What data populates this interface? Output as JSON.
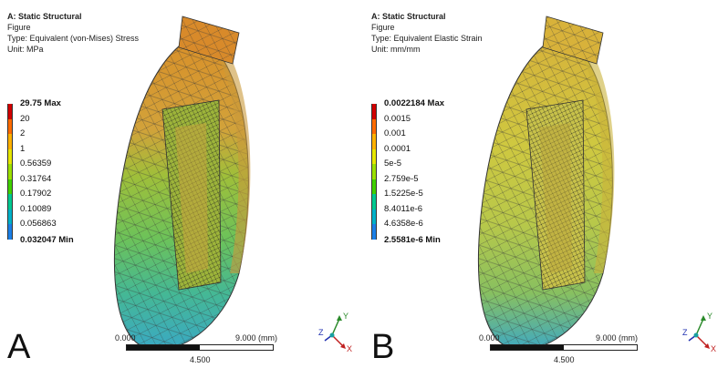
{
  "panels": [
    {
      "letter": "A",
      "header": {
        "title": "A: Static Structural",
        "line2": "Figure",
        "type": "Type: Equivalent (von-Mises) Stress",
        "unit": "Unit: MPa"
      },
      "legend": [
        "29.75 Max",
        "20",
        "2",
        "1",
        "0.56359",
        "0.31764",
        "0.17902",
        "0.10089",
        "0.056863",
        "0.032047 Min"
      ],
      "scale": {
        "left": "0.000",
        "middle": "4.500",
        "right": "9.000 (mm)"
      },
      "axes": {
        "y": "Y",
        "z": "Z",
        "x": "X"
      }
    },
    {
      "letter": "B",
      "header": {
        "title": "A: Static Structural",
        "line2": "Figure",
        "type": "Type: Equivalent Elastic Strain",
        "unit": "Unit: mm/mm"
      },
      "legend": [
        "0.0022184 Max",
        "0.0015",
        "0.001",
        "0.0001",
        "5e-5",
        "2.759e-5",
        "1.5225e-5",
        "8.4011e-6",
        "4.6358e-6",
        "2.5581e-6 Min"
      ],
      "scale": {
        "left": "0.000",
        "middle": "4.500",
        "right": "9.000 (mm)"
      },
      "axes": {
        "y": "Y",
        "z": "Z",
        "x": "X"
      }
    }
  ],
  "legend_colors": [
    "#d00000",
    "#ff6a00",
    "#ffb000",
    "#e6e600",
    "#9be000",
    "#3fd000",
    "#00c890",
    "#00b0c8",
    "#1a7fe6",
    "#0000d0"
  ]
}
